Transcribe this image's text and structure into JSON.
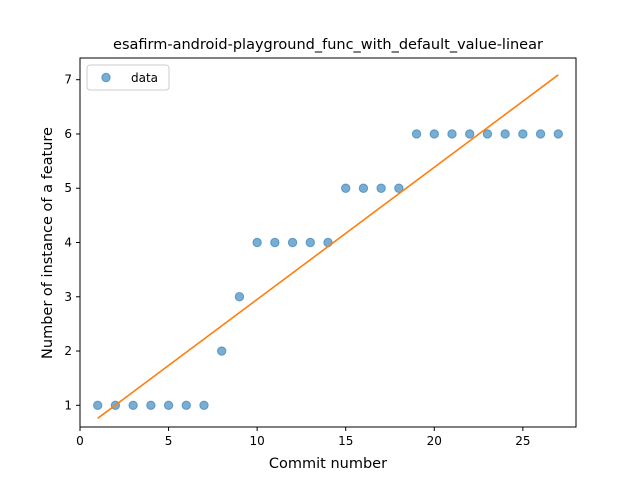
{
  "chart_data": {
    "type": "scatter",
    "title": "esafirm-android-playground_func_with_default_value-linear",
    "xlabel": "Commit number",
    "ylabel": "Number of instance of a feature",
    "xlim": [
      0,
      28
    ],
    "ylim": [
      0.6,
      7.4
    ],
    "xticks": [
      0,
      5,
      10,
      15,
      20,
      25
    ],
    "yticks": [
      1,
      2,
      3,
      4,
      5,
      6,
      7
    ],
    "grid": false,
    "legend_position": "top-left",
    "series": [
      {
        "name": "data",
        "kind": "scatter",
        "color": "#1f77b4",
        "x": [
          1,
          2,
          3,
          4,
          5,
          6,
          7,
          8,
          9,
          10,
          11,
          12,
          13,
          14,
          15,
          16,
          17,
          18,
          19,
          20,
          21,
          22,
          23,
          24,
          25,
          26,
          27
        ],
        "y": [
          1,
          1,
          1,
          1,
          1,
          1,
          1,
          2,
          3,
          4,
          4,
          4,
          4,
          4,
          5,
          5,
          5,
          5,
          6,
          6,
          6,
          6,
          6,
          6,
          6,
          6,
          6
        ]
      },
      {
        "kind": "line",
        "color": "#ff7f0e",
        "x": [
          1,
          27
        ],
        "y": [
          0.76,
          7.09
        ]
      }
    ]
  }
}
